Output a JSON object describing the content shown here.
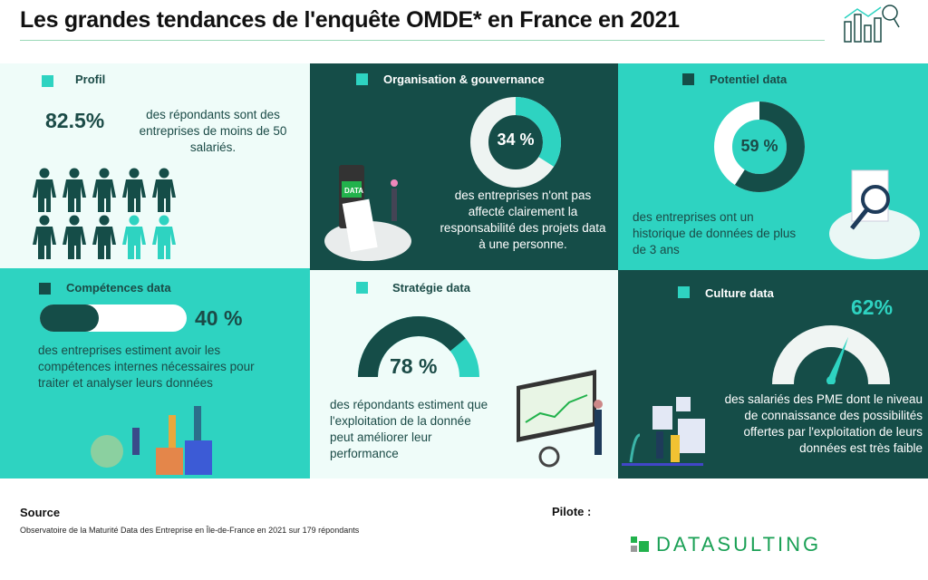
{
  "title": "Les grandes tendances de l'enquête OMDE* en France en 2021",
  "colors": {
    "dark": "#154d48",
    "teal": "#2ed3c1",
    "light": "#effcf9",
    "gauge_track": "#f0f5f3"
  },
  "panels": {
    "profil": {
      "title": "Profil",
      "value": "82.5%",
      "text": "des répondants sont des entreprises de moins de 50 salariés.",
      "people_total": 10,
      "people_dark": 8
    },
    "organisation": {
      "title": "Organisation & gouvernance",
      "value": "34 %",
      "percent": 34,
      "text": "des entreprises n'ont pas affecté clairement la responsabilité des projets data à une personne.",
      "illustration_label": "DATA"
    },
    "potentiel": {
      "title": "Potentiel data",
      "value": "59 %",
      "percent": 59,
      "text": "des entreprises ont un historique de données de plus de 3 ans"
    },
    "competences": {
      "title": "Compétences data",
      "value": "40 %",
      "percent": 40,
      "text": "des entreprises estiment avoir les compétences internes nécessaires pour traiter et analyser leurs données"
    },
    "strategie": {
      "title": "Stratégie data",
      "value": "78 %",
      "percent": 78,
      "text": "des répondants estiment que l'exploitation de la donnée peut améliorer leur performance"
    },
    "culture": {
      "title": "Culture data",
      "value": "62%",
      "percent": 62,
      "text": "des salariés des PME dont le niveau de connaissance des possibilités offertes par l'exploitation de leurs données est très faible"
    }
  },
  "footer": {
    "source_label": "Source",
    "source_text": "Observatoire de la Maturité Data des Entreprise en Île-de-France en 2021 sur 179 répondants",
    "pilote_label": "Pilote :",
    "logo_text": "DATASULTING"
  }
}
